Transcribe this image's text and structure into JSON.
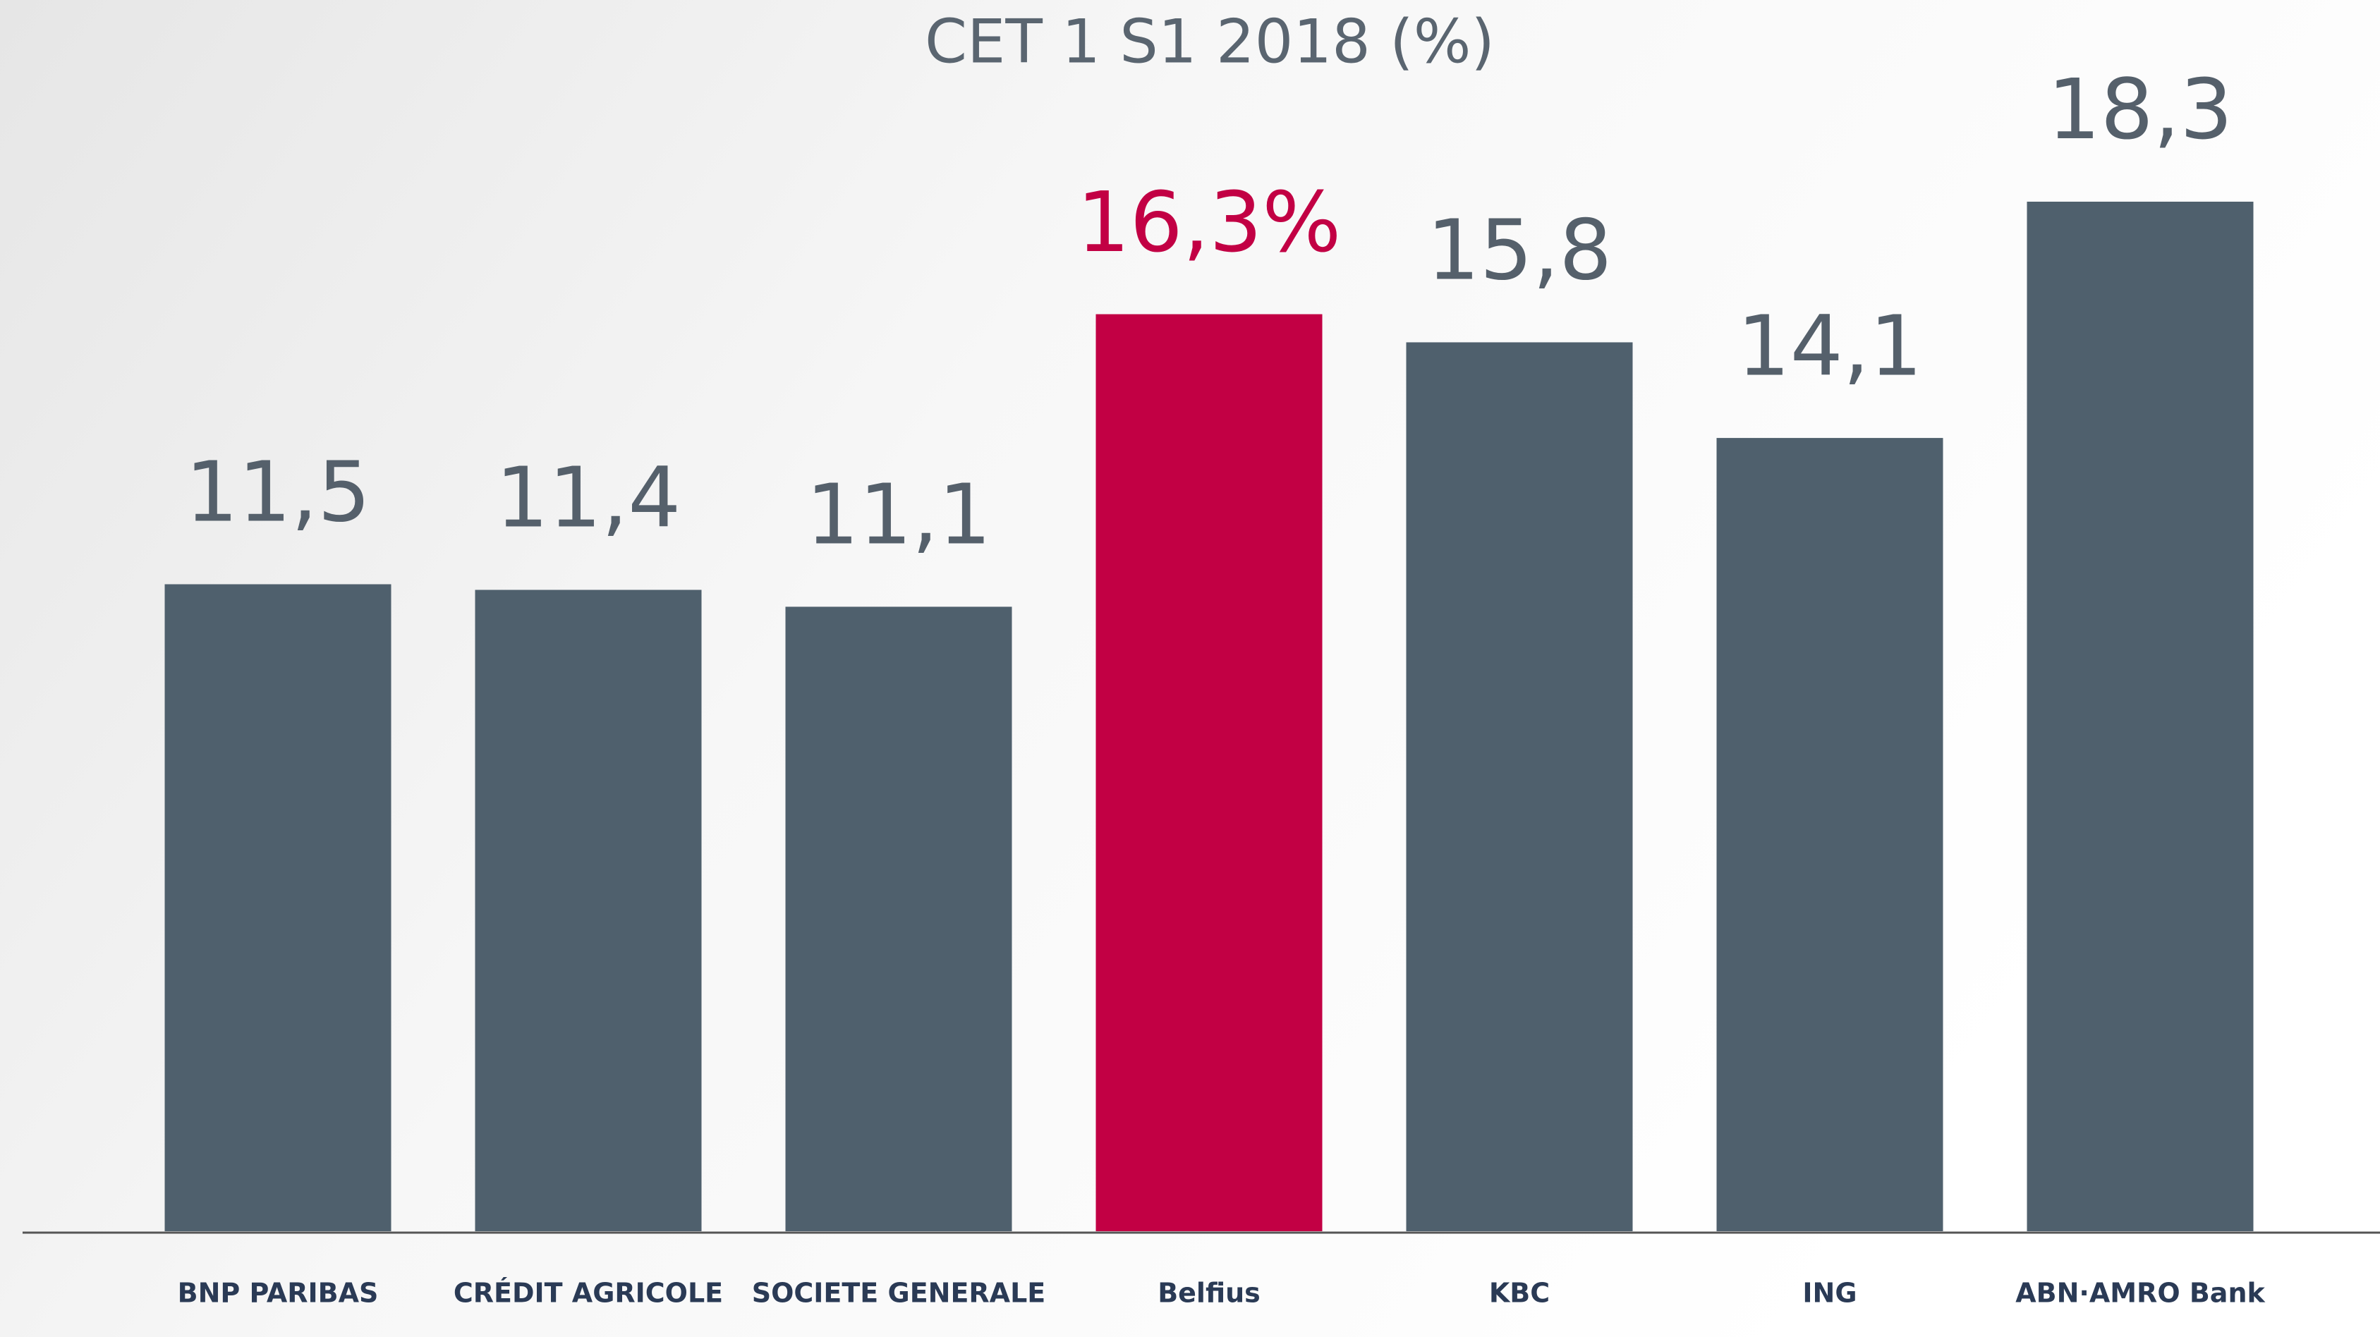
{
  "chart_data": {
    "type": "bar",
    "title": "CET 1  S1 2018 (%)",
    "categories": [
      "BNP PARIBAS",
      "CRÉDIT AGRICOLE",
      "SOCIETE GENERALE",
      "Belfius",
      "KBC",
      "ING",
      "ABN·AMRO Bank"
    ],
    "values": [
      11.5,
      11.4,
      11.1,
      16.3,
      15.8,
      14.1,
      18.3
    ],
    "value_labels": [
      "11,5",
      "11,4",
      "11,1",
      "16,3%",
      "15,8",
      "14,1",
      "18,3"
    ],
    "colors": [
      "#4f606d",
      "#4f606d",
      "#4f606d",
      "#c20044",
      "#4f606d",
      "#4f606d",
      "#4f606d"
    ]
  }
}
